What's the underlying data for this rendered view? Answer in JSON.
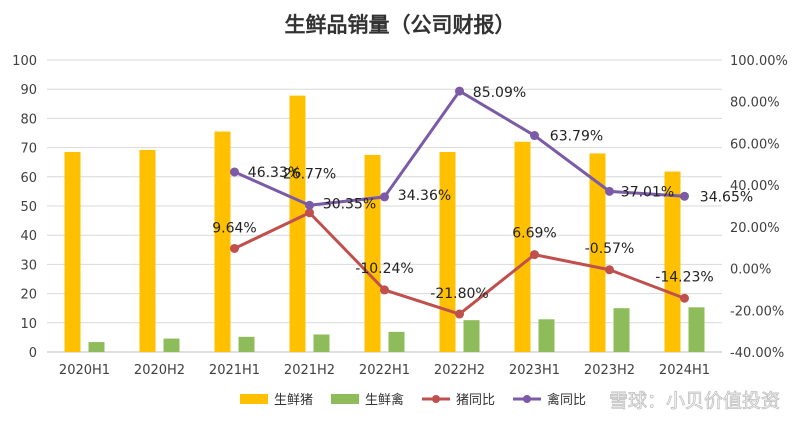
{
  "chart_data": {
    "type": "bar",
    "title": "生鲜品销量（公司财报）",
    "categories": [
      "2020H1",
      "2020H2",
      "2021H1",
      "2021H2",
      "2022H1",
      "2022H2",
      "2023H1",
      "2023H2",
      "2024H1"
    ],
    "series": [
      {
        "name": "生鲜猪",
        "kind": "bar",
        "axis": "left",
        "color": "#FFC000",
        "values": [
          68.5,
          69.2,
          75.5,
          87.8,
          67.5,
          68.5,
          72.0,
          68.0,
          61.8
        ]
      },
      {
        "name": "生鲜禽",
        "kind": "bar",
        "axis": "left",
        "color": "#8FBC5A",
        "values": [
          3.4,
          4.6,
          5.2,
          6.0,
          6.9,
          10.9,
          11.2,
          15.0,
          15.3
        ]
      },
      {
        "name": "猪同比",
        "kind": "line",
        "axis": "right",
        "color": "#C0504D",
        "values": [
          null,
          null,
          9.64,
          26.77,
          -10.24,
          -21.8,
          6.69,
          -0.57,
          -14.23
        ],
        "labels": [
          "",
          "",
          "9.64%",
          "26.77%",
          "-10.24%",
          "-21.80%",
          "6.69%",
          "-0.57%",
          "-14.23%"
        ]
      },
      {
        "name": "禽同比",
        "kind": "line",
        "axis": "right",
        "color": "#7B5BA6",
        "values": [
          null,
          null,
          46.33,
          30.35,
          34.36,
          85.09,
          63.79,
          37.01,
          34.65
        ],
        "labels": [
          "",
          "",
          "46.33%",
          "30.35%",
          "34.36%",
          "85.09%",
          "63.79%",
          "37.01%",
          "34.65%"
        ]
      }
    ],
    "y_left": {
      "min": 0,
      "max": 100,
      "ticks": [
        "0",
        "10",
        "20",
        "30",
        "40",
        "50",
        "60",
        "70",
        "80",
        "90",
        "100"
      ]
    },
    "y_right": {
      "min": -40,
      "max": 100,
      "ticks": [
        "-40.00%",
        "-20.00%",
        "0.00%",
        "20.00%",
        "40.00%",
        "60.00%",
        "80.00%",
        "100.00%"
      ]
    },
    "grid": true,
    "legend_position": "bottom"
  },
  "watermark": "雪球：小贝价值投资",
  "colors": {
    "grid": "#D9D9D9",
    "axis": "#BFBFBF"
  }
}
